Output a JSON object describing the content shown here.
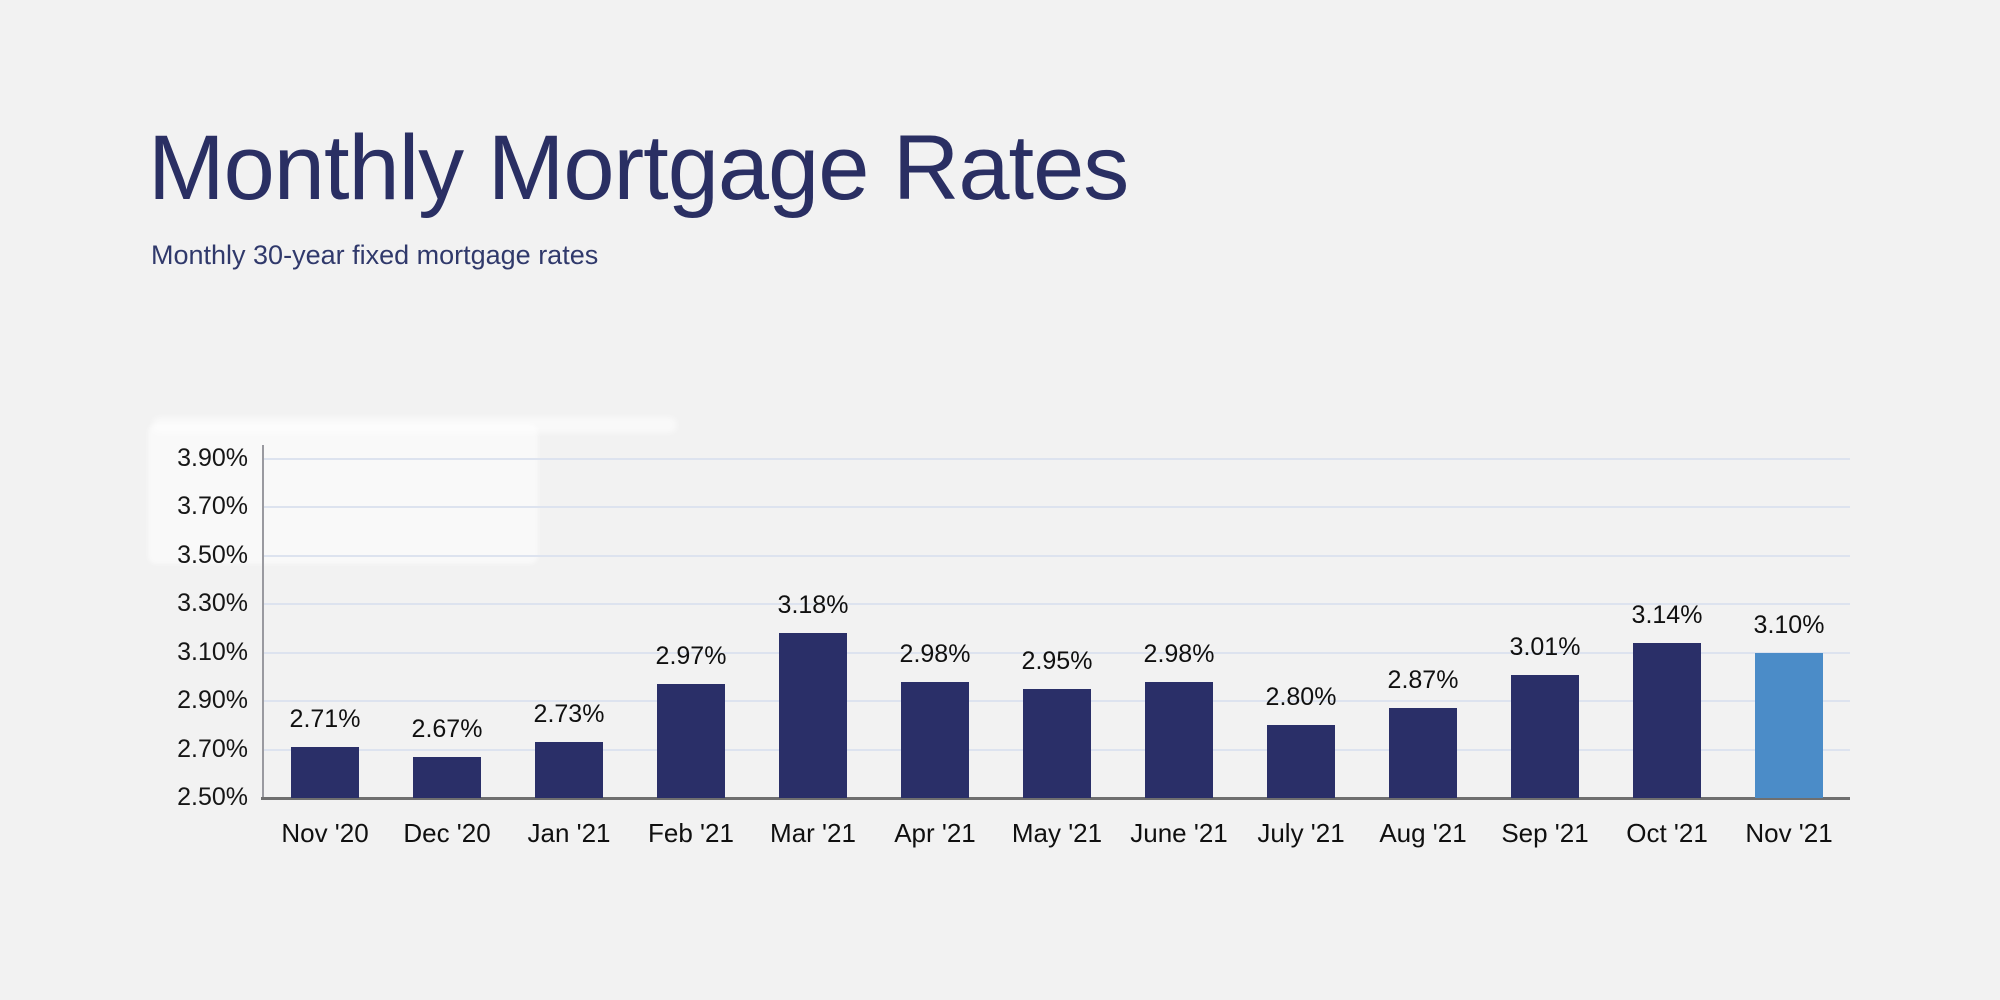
{
  "header": {
    "title": "Monthly Mortgage Rates",
    "subtitle": "Monthly 30-year fixed mortgage rates"
  },
  "theme": {
    "background": "#f2f2f2",
    "title_color": "#2a2f63",
    "subtitle_color": "#30396b",
    "bar_color": "#2a2f68",
    "highlight_bar_color": "#4b8cc8",
    "gridline_color": "#dde3ef",
    "y_axis_line_color": "#9a9aa0",
    "x_axis_line_color": "#6f6f6f",
    "label_color": "#101010"
  },
  "chart_data": {
    "type": "bar",
    "title": "Monthly Mortgage Rates",
    "subtitle": "Monthly 30-year fixed mortgage rates",
    "categories": [
      "Nov '20",
      "Dec '20",
      "Jan '21",
      "Feb '21",
      "Mar '21",
      "Apr '21",
      "May '21",
      "June '21",
      "July '21",
      "Aug '21",
      "Sep '21",
      "Oct '21",
      "Nov '21"
    ],
    "values": [
      2.71,
      2.67,
      2.73,
      2.97,
      3.18,
      2.98,
      2.95,
      2.98,
      2.8,
      2.87,
      3.01,
      3.14,
      3.1
    ],
    "data_labels": [
      "2.71%",
      "2.67%",
      "2.73%",
      "2.97%",
      "3.18%",
      "2.98%",
      "2.95%",
      "2.98%",
      "2.80%",
      "2.87%",
      "3.01%",
      "3.14%",
      "3.10%"
    ],
    "ytick_values": [
      3.9,
      3.7,
      3.5,
      3.3,
      3.1,
      2.9,
      2.7,
      2.5
    ],
    "ytick_labels": [
      "3.90%",
      "3.70%",
      "3.50%",
      "3.30%",
      "3.10%",
      "2.90%",
      "2.70%",
      "2.50%"
    ],
    "ylim": [
      2.5,
      3.9
    ],
    "xlabel": "",
    "ylabel": "",
    "grid": true,
    "legend": false,
    "highlight_index": 12
  }
}
